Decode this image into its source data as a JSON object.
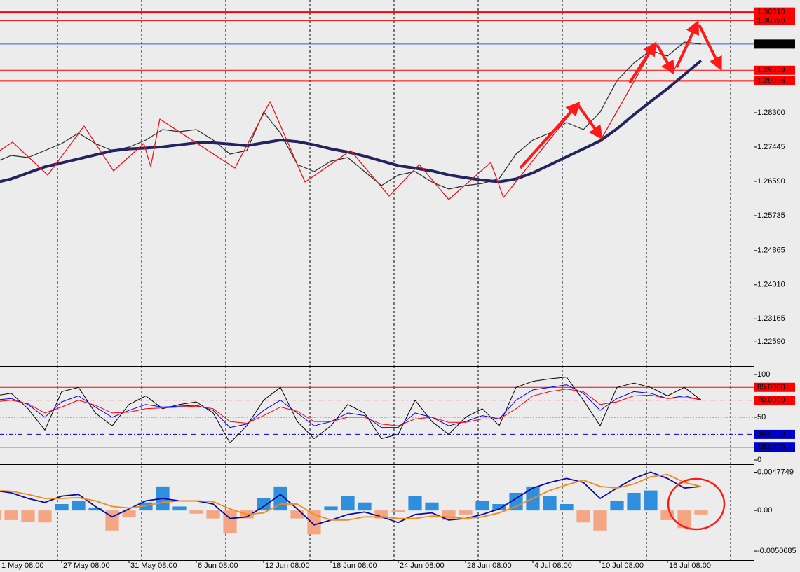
{
  "chart_data": [
    {
      "type": "line",
      "x": [
        0,
        1,
        2,
        3,
        4,
        5,
        6,
        7,
        8,
        9,
        10,
        11,
        12,
        13,
        14,
        15,
        16,
        17,
        18,
        19,
        20,
        21,
        22,
        23,
        24,
        25,
        26,
        27,
        28,
        29,
        30,
        31,
        32,
        33,
        34,
        35,
        36,
        37,
        38,
        39,
        40,
        41,
        42
      ],
      "xlim": [
        0.333,
        45.125
      ],
      "xticks": [
        {
          "value": 0,
          "label": "1 May 08:00"
        },
        {
          "value": 4,
          "label": "27 May 08:00"
        },
        {
          "value": 8,
          "label": "31 May 08:00"
        },
        {
          "value": 12,
          "label": "6 Jun 08:00"
        },
        {
          "value": 16,
          "label": "12 Jun 08:00"
        },
        {
          "value": 20,
          "label": "18 Jun 08:00"
        },
        {
          "value": 24,
          "label": "24 Jun 08:00"
        },
        {
          "value": 28,
          "label": "28 Jun 08:00"
        },
        {
          "value": 32,
          "label": "4 Jul 08:00"
        },
        {
          "value": 36,
          "label": "10 Jul 08:00"
        },
        {
          "value": 40,
          "label": "16 Jul 08:00"
        }
      ],
      "xgrid": [
        3.75,
        8.75,
        13.75,
        18.75,
        23.75,
        28.75,
        33.75,
        38.75,
        43.75
      ],
      "ylim": [
        1.21983,
        1.31109
      ],
      "yticks": [
        {
          "value": 1.283,
          "label": "1.28300"
        },
        1.27445,
        {
          "value": 1.2659,
          "label": "1.26590"
        },
        1.25735,
        1.24865,
        {
          "value": 1.2401,
          "label": "1.24010"
        },
        1.23165,
        {
          "value": 1.2259,
          "label": "1.22590"
        }
      ],
      "series": [
        {
          "color": "#2b2b2b",
          "line_width": 1.2,
          "values": [
            1.27061,
            1.27235,
            1.27183,
            1.27357,
            1.27532,
            1.27793,
            1.27532,
            1.27357,
            1.27445,
            1.27619,
            1.27881,
            1.27828,
            1.27881,
            1.27619,
            1.2727,
            1.27357,
            1.28317,
            1.27793,
            1.27008,
            1.26834,
            1.27096,
            1.27183,
            1.26834,
            1.26485,
            1.26747,
            1.26834,
            1.26572,
            1.26397,
            1.26485,
            1.26537,
            1.26659,
            1.2727,
            1.27619,
            1.27793,
            1.28055,
            1.27881,
            1.28317,
            1.29102,
            1.29538,
            1.29852,
            1.29713,
            1.30062,
            1.30012
          ]
        },
        {
          "color": "#23235e",
          "line_width": 4,
          "values": [
            1.2655,
            1.2665,
            1.268,
            1.2695,
            1.2705,
            1.2715,
            1.2725,
            1.2735,
            1.274,
            1.2742,
            1.2745,
            1.275,
            1.2755,
            1.2755,
            1.2752,
            1.2748,
            1.2755,
            1.2762,
            1.2758,
            1.275,
            1.274,
            1.2732,
            1.2722,
            1.271,
            1.2698,
            1.2692,
            1.2685,
            1.2675,
            1.2668,
            1.2662,
            1.2658,
            1.2665,
            1.268,
            1.27,
            1.272,
            1.274,
            1.276,
            1.279,
            1.2825,
            1.2858,
            1.289,
            1.2925,
            1.296
          ]
        },
        {
          "color": "#e8141e",
          "line_width": 1.3,
          "x": [
            0.33,
            1.08,
            3.17,
            5.33,
            7.08,
            8.88,
            9.29,
            9.83,
            14.29,
            16.38,
            18.46,
            21.17,
            23.46,
            25.25,
            27,
            29.5,
            30.25,
            34.71,
            36.08,
            39.29,
            40.33,
            41.79
          ],
          "values": [
            1.27357,
            1.27567,
            1.26747,
            1.27968,
            1.26852,
            1.27532,
            1.26956,
            1.28142,
            1.26921,
            1.28579,
            1.26572,
            1.27357,
            1.26223,
            1.27008,
            1.26136,
            1.27061,
            1.26188,
            1.28526,
            1.27654,
            1.30027,
            1.29312,
            1.30551
          ]
        }
      ],
      "levels": [
        {
          "value": 1.3081,
          "label": "1.30810",
          "color": "#ff0000",
          "width": 2
        },
        {
          "value": 1.30596,
          "label": "1.30596",
          "color": "#ff0000",
          "width": 1
        },
        {
          "value": 1.30012,
          "label": "1.30012",
          "color": "#3a5fcd",
          "width": 1,
          "box": "#000000"
        },
        {
          "value": 1.29359,
          "label": "1.29359",
          "color": "#ff0000",
          "width": 1
        },
        {
          "value": 1.29096,
          "label": "1.29096",
          "color": "#ff0000",
          "width": 2
        }
      ]
    },
    {
      "type": "line",
      "ylim": [
        -4.9,
        109
      ],
      "yticks": [
        100,
        50,
        0
      ],
      "levels": [
        {
          "value": 85,
          "label": "85.0000",
          "color": "#ff0000",
          "width": 1,
          "style": "solid"
        },
        {
          "value": 70,
          "label": "70.0000",
          "color": "#ff0000",
          "width": 1,
          "style": "dashdot"
        },
        {
          "value": 50,
          "color": "#777777",
          "width": 1,
          "style": "dotted"
        },
        {
          "value": 30,
          "label": "30.0000",
          "color": "#0000cc",
          "width": 1,
          "style": "dashdot"
        },
        {
          "value": 15,
          "label": "15.0000",
          "color": "#0000cc",
          "width": 1,
          "style": "solid"
        }
      ],
      "series": [
        {
          "color": "#000000",
          "line_width": 1,
          "values": [
            75,
            78,
            60,
            35,
            80,
            85,
            55,
            40,
            65,
            75,
            60,
            65,
            68,
            55,
            20,
            40,
            70,
            85,
            45,
            25,
            40,
            65,
            55,
            25,
            30,
            70,
            45,
            30,
            50,
            60,
            40,
            85,
            92,
            95,
            97,
            70,
            40,
            85,
            90,
            85,
            75,
            85,
            70
          ]
        },
        {
          "color": "#0000ff",
          "line_width": 1,
          "values": [
            70,
            72,
            65,
            50,
            68,
            75,
            62,
            50,
            58,
            65,
            62,
            63,
            64,
            58,
            38,
            42,
            58,
            70,
            55,
            40,
            45,
            55,
            52,
            38,
            38,
            55,
            50,
            40,
            45,
            52,
            48,
            70,
            82,
            85,
            88,
            78,
            58,
            72,
            80,
            78,
            72,
            75,
            70
          ]
        },
        {
          "color": "#ff0000",
          "line_width": 1,
          "values": [
            68,
            70,
            66,
            55,
            62,
            70,
            64,
            55,
            56,
            60,
            61,
            62,
            63,
            60,
            45,
            43,
            52,
            62,
            57,
            45,
            45,
            50,
            50,
            42,
            40,
            48,
            50,
            44,
            44,
            48,
            48,
            60,
            75,
            80,
            83,
            80,
            65,
            68,
            75,
            76,
            72,
            73,
            71
          ]
        }
      ]
    },
    {
      "type": "macd",
      "ylim": [
        -0.0062,
        0.0057
      ],
      "yticks": [
        0.0047749,
        {
          "value": 0,
          "label": "0.00"
        },
        -0.0050685
      ],
      "histogram": {
        "pos_color": "#2f8fdc",
        "neg_color": "#f4a582",
        "values": [
          -0.0012,
          -0.0012,
          -0.0014,
          -0.0015,
          0.0008,
          0.0012,
          0.0003,
          -0.0025,
          -0.0008,
          0.001,
          0.003,
          0.0005,
          -0.0004,
          -0.001,
          -0.0028,
          -0.001,
          0.0015,
          0.003,
          -0.001,
          -0.003,
          0.0005,
          0.0018,
          0.001,
          -0.001,
          -0.0002,
          0.0018,
          0.001,
          -0.0012,
          -0.0005,
          0.0012,
          0.0008,
          0.0022,
          0.003,
          0.0018,
          0.0008,
          -0.0015,
          -0.0025,
          0.0012,
          0.0022,
          0.0025,
          -0.0012,
          -0.0022,
          -0.0005
        ]
      },
      "series": [
        {
          "color": "#0a0aa0",
          "line_width": 1.8,
          "values": [
            0.0025,
            0.0022,
            0.0015,
            0.001,
            0.0018,
            0.002,
            0.0005,
            -0.0008,
            0.0002,
            0.0012,
            0.0015,
            0.0012,
            0.0012,
            0.0008,
            -0.001,
            -0.0008,
            0.0005,
            0.002,
            0.0002,
            -0.0018,
            -0.0012,
            -0.0005,
            -0.0002,
            -0.0008,
            -0.0015,
            -0.0005,
            -0.0003,
            -0.0012,
            -0.001,
            -0.0005,
            0.0002,
            0.0015,
            0.0028,
            0.0035,
            0.004,
            0.0035,
            0.0015,
            0.0028,
            0.004,
            0.0048,
            0.004,
            0.0028,
            0.003
          ]
        },
        {
          "color": "#f08a1c",
          "line_width": 1.8,
          "values": [
            0.0025,
            0.0024,
            0.002,
            0.0015,
            0.0015,
            0.0016,
            0.0012,
            0.0005,
            0.0003,
            0.0006,
            0.001,
            0.0012,
            0.0012,
            0.0011,
            0.0002,
            -0.0005,
            -0.0003,
            0.0008,
            0.0008,
            -0.0005,
            -0.0012,
            -0.0012,
            -0.0008,
            -0.0008,
            -0.001,
            -0.001,
            -0.0007,
            -0.0008,
            -0.001,
            -0.0008,
            -0.0003,
            0.0005,
            0.0015,
            0.0025,
            0.0032,
            0.0038,
            0.003,
            0.0028,
            0.0033,
            0.0042,
            0.0045,
            0.0035,
            0.003
          ]
        }
      ]
    }
  ]
}
